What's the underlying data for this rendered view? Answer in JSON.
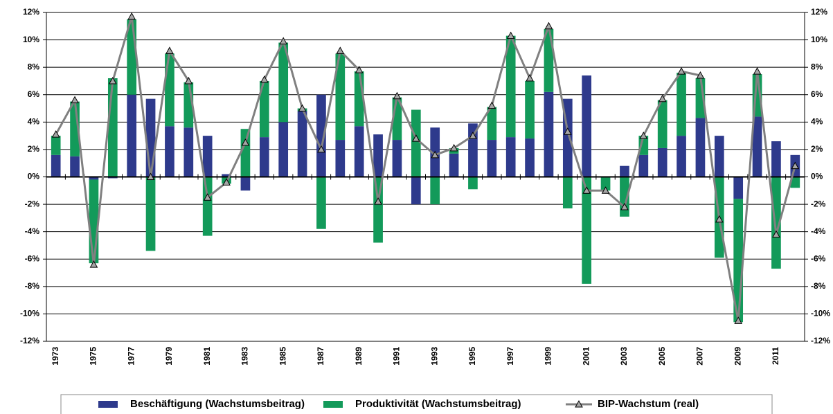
{
  "chart_data": {
    "type": "bar-line",
    "categories": [
      "1973",
      null,
      "1975",
      null,
      "1977",
      null,
      "1979",
      null,
      "1981",
      null,
      "1983",
      null,
      "1985",
      null,
      "1987",
      null,
      "1989",
      null,
      "1991",
      null,
      "1993",
      null,
      "1995",
      null,
      "1997",
      null,
      "1999",
      null,
      "2001",
      null,
      "2003",
      null,
      "2005",
      null,
      "2007",
      null,
      "2009",
      null,
      "2011",
      null
    ],
    "series": [
      {
        "name": "Beschäftigung (Wachstumsbeitrag)",
        "type": "bar",
        "color": "#2e3a8c",
        "values": [
          1.6,
          1.5,
          -0.2,
          -0.1,
          6.0,
          5.7,
          3.7,
          3.6,
          3.0,
          0.2,
          -1.0,
          2.9,
          4.0,
          4.8,
          6.0,
          2.7,
          3.7,
          3.1,
          2.7,
          -2.0,
          3.6,
          1.7,
          3.9,
          2.7,
          2.9,
          2.8,
          6.2,
          5.7,
          7.4,
          0.0,
          0.8,
          1.6,
          2.1,
          3.0,
          4.3,
          3.0,
          -1.6,
          4.4,
          2.6,
          1.6
        ]
      },
      {
        "name": "Produktivität (Wachstumsbeitrag)",
        "type": "bar",
        "color": "#139a5a",
        "values": [
          1.4,
          4.0,
          -6.1,
          7.2,
          5.5,
          -5.4,
          5.3,
          3.3,
          -4.3,
          -0.5,
          3.5,
          4.1,
          5.8,
          0.2,
          -3.8,
          6.3,
          4.0,
          -4.8,
          3.1,
          4.9,
          -2.0,
          0.4,
          -0.9,
          2.4,
          7.4,
          4.2,
          4.6,
          -2.3,
          -7.8,
          -1.0,
          -2.9,
          1.4,
          3.5,
          4.6,
          2.9,
          -5.9,
          -9.0,
          3.1,
          -6.7,
          -0.8
        ]
      },
      {
        "name": "BIP-Wachstum (real)",
        "type": "line",
        "axis": "y2",
        "color": "#808080",
        "values": [
          3.1,
          5.6,
          -6.4,
          7.0,
          11.7,
          0.0,
          9.2,
          7.0,
          -1.5,
          -0.4,
          2.5,
          7.1,
          9.9,
          5.0,
          2.0,
          9.2,
          7.8,
          -1.8,
          5.9,
          2.8,
          1.6,
          2.1,
          3.0,
          5.2,
          10.3,
          7.2,
          11.0,
          3.3,
          -1.0,
          -1.0,
          -2.2,
          3.0,
          5.7,
          7.7,
          7.4,
          -3.1,
          -10.5,
          7.7,
          -4.2,
          0.8
        ]
      }
    ],
    "ylim": [
      -12,
      12
    ],
    "yticks": [
      {
        "value": -12,
        "label": "-12%"
      },
      {
        "value": -10,
        "label": "-10%"
      },
      {
        "value": -8,
        "label": "-8%"
      },
      {
        "value": -6,
        "label": "-6%"
      },
      {
        "value": -4,
        "label": "-4%"
      },
      {
        "value": -2,
        "label": "-2%"
      },
      {
        "value": 0,
        "label": "0%"
      },
      {
        "value": 2,
        "label": "2%"
      },
      {
        "value": 4,
        "label": "4%"
      },
      {
        "value": 6,
        "label": "6%"
      },
      {
        "value": 8,
        "label": "8%"
      },
      {
        "value": 10,
        "label": "10%"
      },
      {
        "value": 12,
        "label": "12%"
      }
    ],
    "y2lim": [
      -12,
      12
    ],
    "y2ticks": [
      {
        "value": -12,
        "label": "-12%"
      },
      {
        "value": -10,
        "label": "-10%"
      },
      {
        "value": -8,
        "label": "-8%"
      },
      {
        "value": -6,
        "label": "-6%"
      },
      {
        "value": -4,
        "label": "-4%"
      },
      {
        "value": -2,
        "label": "-2%"
      },
      {
        "value": 0,
        "label": "0%"
      },
      {
        "value": 2,
        "label": "2%"
      },
      {
        "value": 4,
        "label": "4%"
      },
      {
        "value": 6,
        "label": "6%"
      },
      {
        "value": 8,
        "label": "8%"
      },
      {
        "value": 10,
        "label": "10%"
      },
      {
        "value": 12,
        "label": "12%"
      }
    ],
    "grid": true,
    "legend": "bottom"
  }
}
